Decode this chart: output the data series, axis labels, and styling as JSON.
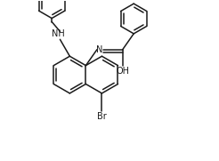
{
  "background_color": "#ffffff",
  "line_color": "#1a1a1a",
  "line_width": 1.1,
  "font_size": 7.0,
  "figsize": [
    2.46,
    1.81
  ],
  "dpi": 100,
  "xlim": [
    0,
    246
  ],
  "ylim": [
    0,
    181
  ]
}
